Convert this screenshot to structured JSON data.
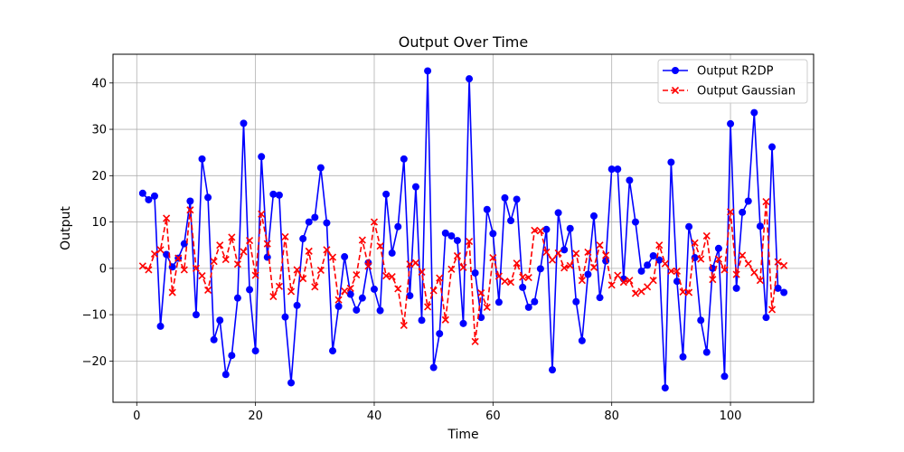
{
  "chart_data": {
    "type": "line",
    "title": "Output Over Time",
    "xlabel": "Time",
    "ylabel": "Output",
    "xlim": [
      -4,
      114
    ],
    "ylim": [
      -28.9,
      46.2
    ],
    "xticks": [
      0,
      20,
      40,
      60,
      80,
      100
    ],
    "yticks": [
      -20,
      -10,
      0,
      10,
      20,
      30,
      40
    ],
    "grid": true,
    "legend_position": "top-right",
    "x": [
      1,
      2,
      3,
      4,
      5,
      6,
      7,
      8,
      9,
      10,
      11,
      12,
      13,
      14,
      15,
      16,
      17,
      18,
      19,
      20,
      21,
      22,
      23,
      24,
      25,
      26,
      27,
      28,
      29,
      30,
      31,
      32,
      33,
      34,
      35,
      36,
      37,
      38,
      39,
      40,
      41,
      42,
      43,
      44,
      45,
      46,
      47,
      48,
      49,
      50,
      51,
      52,
      53,
      54,
      55,
      56,
      57,
      58,
      59,
      60,
      61,
      62,
      63,
      64,
      65,
      66,
      67,
      68,
      69,
      70,
      71,
      72,
      73,
      74,
      75,
      76,
      77,
      78,
      79,
      80,
      81,
      82,
      83,
      84,
      85,
      86,
      87,
      88,
      89,
      90,
      91,
      92,
      93,
      94,
      95,
      96,
      97,
      98,
      99,
      100,
      101,
      102,
      103,
      104,
      105,
      106,
      107,
      108,
      109
    ],
    "series": [
      {
        "name": "Output R2DP",
        "color": "#0000ff",
        "linestyle": "solid",
        "marker": "circle",
        "values": [
          16.2,
          14.8,
          15.6,
          -12.5,
          3.0,
          0.3,
          2.2,
          5.3,
          14.5,
          -10.0,
          23.6,
          15.3,
          -15.4,
          -11.2,
          -22.9,
          -18.8,
          -6.4,
          31.3,
          -4.6,
          -17.8,
          24.1,
          2.4,
          16.0,
          15.8,
          -10.5,
          -24.7,
          -8.0,
          6.4,
          10.0,
          11.0,
          21.7,
          9.8,
          -17.8,
          -8.2,
          2.5,
          -5.6,
          -9.0,
          -6.4,
          1.2,
          -4.5,
          -9.1,
          16.0,
          3.3,
          9.0,
          23.6,
          -5.9,
          17.6,
          -11.2,
          42.6,
          -21.4,
          -14.1,
          7.6,
          7.0,
          6.0,
          -11.9,
          40.9,
          -1.0,
          -10.6,
          12.7,
          7.5,
          -7.3,
          15.2,
          10.3,
          14.9,
          -4.1,
          -8.4,
          -7.2,
          -0.1,
          8.4,
          -21.9,
          12.0,
          4.0,
          8.6,
          -7.2,
          -15.6,
          -1.3,
          11.3,
          -6.3,
          1.6,
          21.4,
          21.4,
          -2.3,
          19.0,
          10.0,
          -0.6,
          0.7,
          2.7,
          1.8,
          -25.8,
          22.9,
          -2.8,
          -19.1,
          9.0,
          2.3,
          -11.2,
          -18.1,
          0.0,
          4.3,
          -23.3,
          31.2,
          -4.3,
          12.1,
          14.5,
          33.6,
          9.1,
          -10.6,
          26.2,
          -4.3,
          -5.2
        ]
      },
      {
        "name": "Output Gaussian",
        "color": "#ff0000",
        "linestyle": "dashed",
        "marker": "x",
        "values": [
          0.5,
          -0.3,
          3.1,
          4.0,
          10.8,
          -5.2,
          2.2,
          -0.3,
          12.6,
          0.0,
          -1.6,
          -4.7,
          1.5,
          5.0,
          1.9,
          6.7,
          0.9,
          3.6,
          6.0,
          -1.5,
          11.7,
          5.3,
          -6.1,
          -3.9,
          6.8,
          -5.0,
          -0.3,
          -2.2,
          3.7,
          -4.0,
          -0.4,
          4.0,
          2.4,
          -6.8,
          -4.9,
          -4.3,
          -1.4,
          6.1,
          0.5,
          10.0,
          4.8,
          -1.6,
          -1.8,
          -4.4,
          -12.3,
          0.9,
          1.2,
          -0.8,
          -8.3,
          -4.8,
          -2.1,
          -11.1,
          -0.2,
          2.7,
          0.2,
          5.8,
          -15.8,
          -5.3,
          -8.4,
          2.3,
          -1.7,
          -2.8,
          -3.0,
          1.1,
          -1.9,
          -2.0,
          8.2,
          8.1,
          3.5,
          1.8,
          3.3,
          0.1,
          0.6,
          3.2,
          -2.6,
          3.5,
          0.2,
          5.0,
          2.8,
          -3.6,
          -1.5,
          -3.0,
          -2.6,
          -5.4,
          -5.0,
          -4.0,
          -2.6,
          5.0,
          1.0,
          -0.6,
          -0.6,
          -5.1,
          -5.2,
          5.5,
          2.0,
          7.0,
          -2.4,
          2.0,
          -0.3,
          12.2,
          -1.3,
          2.8,
          1.0,
          -0.9,
          -2.6,
          14.4,
          -8.9,
          1.4,
          0.6
        ]
      }
    ]
  }
}
